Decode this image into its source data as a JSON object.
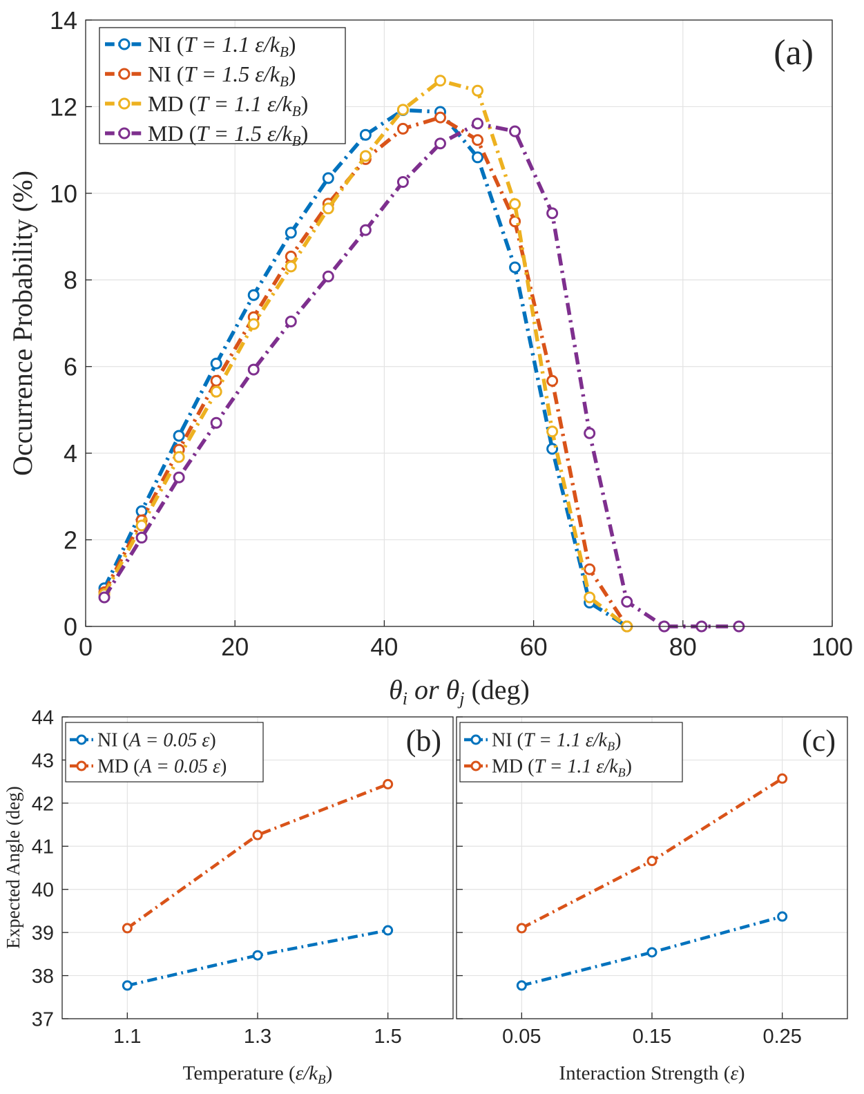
{
  "chart_data": [
    {
      "id": "a",
      "type": "line",
      "panel_label": "(a)",
      "title": "",
      "xlabel": "θi or θj (deg)",
      "ylabel": "Occurrence Probability (%)",
      "xlim": [
        0,
        100
      ],
      "ylim": [
        0,
        14
      ],
      "xticks": [
        0,
        20,
        40,
        60,
        80,
        100
      ],
      "yticks": [
        0,
        2,
        4,
        6,
        8,
        10,
        12,
        14
      ],
      "grid": true,
      "legend_position": "top-left",
      "series": [
        {
          "name": "NI (T = 1.1 ε/kB)",
          "color": "#0072bd",
          "x": [
            2.5,
            7.5,
            12.5,
            17.5,
            22.5,
            27.5,
            32.5,
            37.5,
            42.5,
            47.5,
            52.5,
            57.5,
            62.5,
            67.5,
            72.5
          ],
          "y": [
            0.88,
            2.66,
            4.4,
            6.07,
            7.65,
            9.09,
            10.35,
            11.35,
            11.92,
            11.88,
            10.83,
            8.29,
            4.1,
            0.55,
            0.0
          ]
        },
        {
          "name": "NI (T = 1.5 ε/kB)",
          "color": "#d95319",
          "x": [
            2.5,
            7.5,
            12.5,
            17.5,
            22.5,
            27.5,
            32.5,
            37.5,
            42.5,
            47.5,
            52.5,
            57.5,
            62.5,
            67.5,
            72.5
          ],
          "y": [
            0.79,
            2.45,
            4.08,
            5.67,
            7.14,
            8.54,
            9.76,
            10.79,
            11.49,
            11.75,
            11.23,
            9.35,
            5.67,
            1.32,
            0.0
          ]
        },
        {
          "name": "MD (T = 1.1 ε/kB)",
          "color": "#edb120",
          "x": [
            2.5,
            7.5,
            12.5,
            17.5,
            22.5,
            27.5,
            32.5,
            37.5,
            42.5,
            47.5,
            52.5,
            57.5,
            62.5,
            67.5,
            72.5
          ],
          "y": [
            0.74,
            2.33,
            3.91,
            5.42,
            6.98,
            8.31,
            9.65,
            10.86,
            11.93,
            12.6,
            12.37,
            9.75,
            4.5,
            0.67,
            0.0
          ]
        },
        {
          "name": "MD (T = 1.5 ε/kB)",
          "color": "#7e2f8e",
          "x": [
            2.5,
            7.5,
            12.5,
            17.5,
            22.5,
            27.5,
            32.5,
            37.5,
            42.5,
            47.5,
            52.5,
            57.5,
            62.5,
            67.5,
            72.5,
            77.5,
            82.5,
            87.5
          ],
          "y": [
            0.67,
            2.05,
            3.44,
            4.7,
            5.93,
            7.04,
            8.08,
            9.15,
            10.26,
            11.15,
            11.61,
            11.43,
            9.54,
            4.46,
            0.57,
            0.0,
            0.0,
            0.0
          ]
        }
      ]
    },
    {
      "id": "b",
      "type": "line",
      "panel_label": "(b)",
      "xlabel": "Temperature (ε/kB)",
      "ylabel": "Expected Angle (deg)",
      "categories": [
        "1.1",
        "1.3",
        "1.5"
      ],
      "xlim": [
        1.0,
        1.6
      ],
      "ylim": [
        37,
        44
      ],
      "yticks": [
        37,
        38,
        39,
        40,
        41,
        42,
        43,
        44
      ],
      "grid": true,
      "legend_position": "top-left",
      "series": [
        {
          "name": "NI (A = 0.05 ε)",
          "color": "#0072bd",
          "x": [
            1.1,
            1.3,
            1.5
          ],
          "y": [
            37.77,
            38.47,
            39.05
          ]
        },
        {
          "name": "MD (A = 0.05 ε)",
          "color": "#d95319",
          "x": [
            1.1,
            1.3,
            1.5
          ],
          "y": [
            39.1,
            41.26,
            42.44
          ]
        }
      ]
    },
    {
      "id": "c",
      "type": "line",
      "panel_label": "(c)",
      "xlabel": "Interaction Strength (ε)",
      "ylabel": "",
      "categories": [
        "0.05",
        "0.15",
        "0.25"
      ],
      "xlim": [
        0.0,
        0.3
      ],
      "ylim": [
        37,
        44
      ],
      "grid": true,
      "legend_position": "top-left",
      "series": [
        {
          "name": "NI (T = 1.1 ε/kB)",
          "color": "#0072bd",
          "x": [
            0.05,
            0.15,
            0.25
          ],
          "y": [
            37.77,
            38.54,
            39.37
          ]
        },
        {
          "name": "MD (T = 1.1 ε/kB)",
          "color": "#d95319",
          "x": [
            0.05,
            0.15,
            0.25
          ],
          "y": [
            39.1,
            40.66,
            42.57
          ]
        }
      ]
    }
  ]
}
